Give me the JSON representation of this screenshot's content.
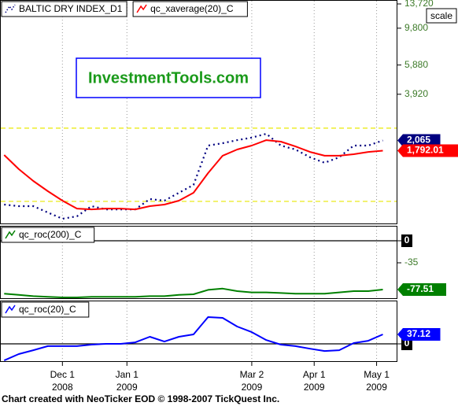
{
  "chart_data": [
    {
      "type": "line",
      "log_scale": true,
      "x": [
        "2008-11-03",
        "2008-11-10",
        "2008-11-17",
        "2008-11-24",
        "2008-12-01",
        "2008-12-08",
        "2008-12-15",
        "2008-12-22",
        "2008-12-29",
        "2009-01-05",
        "2009-01-12",
        "2009-01-19",
        "2009-01-26",
        "2009-02-02",
        "2009-02-09",
        "2009-02-16",
        "2009-02-23",
        "2009-03-02",
        "2009-03-09",
        "2009-03-16",
        "2009-03-23",
        "2009-03-30",
        "2009-04-06",
        "2009-04-13",
        "2009-04-20",
        "2009-04-27",
        "2009-05-04"
      ],
      "xlim": [
        "2008-11-01",
        "2009-05-11"
      ],
      "ylim": [
        646,
        14490
      ],
      "yticks": [
        {
          "value": 13720,
          "label": "13,720"
        },
        {
          "value": 9800,
          "label": "9,800"
        },
        {
          "value": 5880,
          "label": "5,880"
        },
        {
          "value": 3920,
          "label": "3,920"
        }
      ],
      "hlines": [
        2449,
        887
      ],
      "tag_last": true,
      "series": [
        {
          "name": "BALTIC DRY INDEX_D1",
          "color": "#000080",
          "style": "dotted",
          "values": [
            849,
            830,
            830,
            760,
            697,
            721,
            830,
            794,
            794,
            794,
            916,
            896,
            1000,
            1115,
            1923,
            1987,
            2075,
            2148,
            2266,
            1923,
            1822,
            1635,
            1515,
            1635,
            1923,
            1923,
            2065
          ],
          "value_labels": [
            null,
            null,
            null,
            null,
            null,
            null,
            null,
            null,
            null,
            null,
            null,
            null,
            null,
            null,
            null,
            null,
            null,
            null,
            null,
            null,
            null,
            null,
            null,
            null,
            null,
            null,
            "2,065"
          ]
        },
        {
          "name": "qc_xaverage(20)_C",
          "color": "#ff0000",
          "style": "solid",
          "values": [
            1687,
            1388,
            1177,
            1022,
            896,
            803,
            794,
            803,
            803,
            794,
            830,
            849,
            896,
            1000,
            1313,
            1671,
            1822,
            1923,
            2075,
            2032,
            1902,
            1762,
            1671,
            1671,
            1706,
            1762,
            1792.01
          ],
          "value_labels": [
            null,
            null,
            null,
            null,
            null,
            null,
            null,
            null,
            null,
            null,
            null,
            null,
            null,
            null,
            null,
            null,
            null,
            null,
            null,
            null,
            null,
            null,
            null,
            null,
            null,
            null,
            "1,792.01"
          ]
        }
      ]
    },
    {
      "type": "line",
      "x": [
        "2008-11-03",
        "2008-11-10",
        "2008-11-17",
        "2008-11-24",
        "2008-12-01",
        "2008-12-08",
        "2008-12-15",
        "2008-12-22",
        "2008-12-29",
        "2009-01-05",
        "2009-01-12",
        "2009-01-19",
        "2009-01-26",
        "2009-02-02",
        "2009-02-09",
        "2009-02-16",
        "2009-02-23",
        "2009-03-02",
        "2009-03-09",
        "2009-03-16",
        "2009-03-23",
        "2009-03-30",
        "2009-04-06",
        "2009-04-13",
        "2009-04-20",
        "2009-04-27",
        "2009-05-04"
      ],
      "xlim": [
        "2008-11-01",
        "2009-05-11"
      ],
      "ylim": [
        -92.5,
        23.75
      ],
      "yticks": [
        0,
        -35
      ],
      "zero_line": true,
      "tag_last": true,
      "series": [
        {
          "name": "qc_roc(200)_C",
          "color": "#008000",
          "style": "solid",
          "values": [
            -84,
            -86,
            -88,
            -89,
            -90,
            -90,
            -89,
            -89,
            -89,
            -89,
            -88,
            -88,
            -86,
            -85,
            -78,
            -76,
            -80,
            -82,
            -82,
            -83,
            -84,
            -84,
            -84,
            -82,
            -80,
            -80,
            -77.51
          ]
        }
      ]
    },
    {
      "type": "line",
      "x": [
        "2008-11-03",
        "2008-11-10",
        "2008-11-17",
        "2008-11-24",
        "2008-12-01",
        "2008-12-08",
        "2008-12-15",
        "2008-12-22",
        "2008-12-29",
        "2009-01-05",
        "2009-01-12",
        "2009-01-19",
        "2009-01-26",
        "2009-02-02",
        "2009-02-09",
        "2009-02-16",
        "2009-02-23",
        "2009-03-02",
        "2009-03-09",
        "2009-03-16",
        "2009-03-23",
        "2009-03-30",
        "2009-04-06",
        "2009-04-13",
        "2009-04-20",
        "2009-04-27",
        "2009-05-04"
      ],
      "xlim": [
        "2008-11-01",
        "2009-05-11"
      ],
      "ylim": [
        -71,
        170
      ],
      "yticks": [
        0
      ],
      "zero_line": true,
      "tag_last": true,
      "xticks": [
        {
          "value": "2008-12-01",
          "label": "Dec 1",
          "year": "2008"
        },
        {
          "value": "2009-01-01",
          "label": "Jan 1",
          "year": "2009"
        },
        {
          "value": "2009-03-02",
          "label": "Mar 2",
          "year": "2009"
        },
        {
          "value": "2009-04-01",
          "label": "Apr 1",
          "year": "2009"
        },
        {
          "value": "2009-05-01",
          "label": "May 1",
          "year": "2009"
        }
      ],
      "series": [
        {
          "name": "qc_roc(20)_C",
          "color": "#0000ff",
          "style": "solid",
          "values": [
            -65,
            -40,
            -25,
            -9,
            -9,
            -9,
            -3,
            0,
            0,
            6,
            28,
            9,
            28,
            37,
            105,
            102,
            68,
            46,
            15,
            -3,
            -9,
            -19,
            -28,
            -25,
            3,
            12,
            37.12
          ]
        }
      ]
    }
  ],
  "watermark": "InvestmentTools.com",
  "scale_button": "scale",
  "footer": "Chart created with NeoTicker EOD © 1998-2007 TickQuest Inc."
}
